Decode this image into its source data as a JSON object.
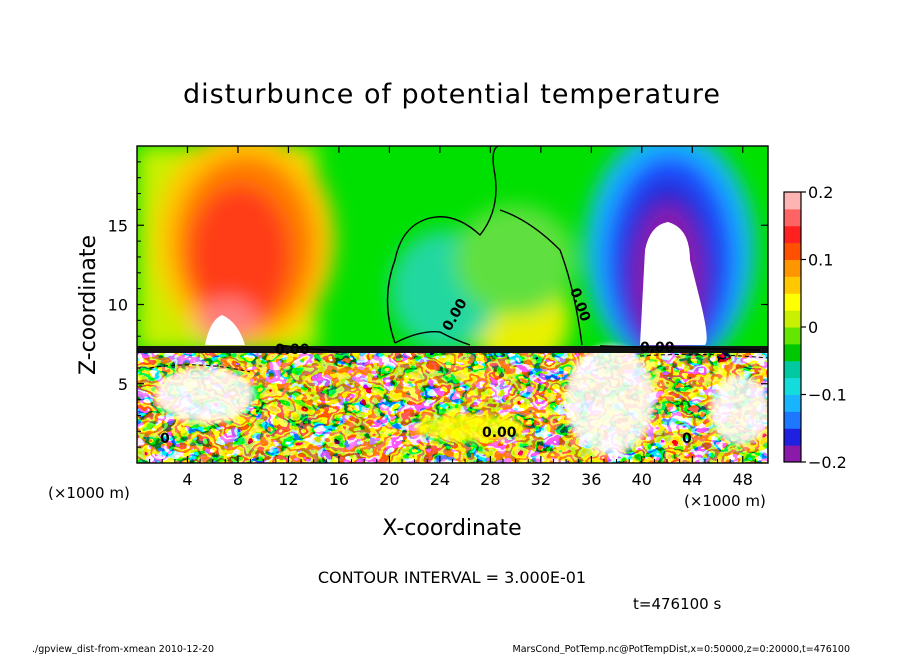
{
  "chart_data": {
    "type": "heatmap",
    "title": "disturbunce of potential temperature",
    "xlabel": "X-coordinate",
    "ylabel": "Z-coordinate",
    "x_unit_label": "(×1000 m)",
    "y_unit_label": "(×1000 m)",
    "xlim": [
      0,
      50
    ],
    "ylim": [
      0,
      20
    ],
    "x_ticks": [
      "4",
      "8",
      "12",
      "16",
      "20",
      "24",
      "28",
      "32",
      "36",
      "40",
      "44",
      "48"
    ],
    "x_tick_values": [
      4,
      8,
      12,
      16,
      20,
      24,
      28,
      32,
      36,
      40,
      44,
      48
    ],
    "y_ticks": [
      "5",
      "10",
      "15"
    ],
    "y_tick_values": [
      5,
      10,
      15
    ],
    "colorbar": {
      "range": [
        -0.2,
        0.2
      ],
      "tick_labels": [
        "0.2",
        "0.1",
        "0",
        "−0.1",
        "−0.2"
      ],
      "tick_values": [
        0.2,
        0.1,
        0,
        -0.1,
        -0.2
      ]
    },
    "contour_labels": [
      "0.00",
      "0.00",
      "0.00",
      "0.00",
      "0.00",
      "0",
      "0"
    ],
    "regions": [
      {
        "name": "warm anomaly upper left",
        "x": [
          2,
          16
        ],
        "z": [
          7.5,
          18
        ],
        "value": 0.15
      },
      {
        "name": "neutral band center",
        "x": [
          16,
          36
        ],
        "z": [
          7.5,
          20
        ],
        "value": 0.0
      },
      {
        "name": "cold anomaly upper right",
        "x": [
          36,
          50
        ],
        "z": [
          7.5,
          19
        ],
        "value": -0.2
      },
      {
        "name": "turbulent layer",
        "x": [
          0,
          50
        ],
        "z": [
          0,
          7.5
        ],
        "value": 0.0
      }
    ],
    "grid": false,
    "legend": "colorbar right"
  },
  "annotations": {
    "contour_interval": "CONTOUR INTERVAL = 3.000E-01",
    "time": "t=476100 s",
    "footer_left": "./gpview_dist-from-xmean  2010-12-20",
    "footer_right": "MarsCond_PotTemp.nc@PotTempDist,x=0:50000,z=0:20000,t=476100"
  },
  "colors": {
    "scale": [
      "#8a1aaa",
      "#2020e0",
      "#1e78ff",
      "#18b4ff",
      "#14dcdc",
      "#00c8a0",
      "#00c800",
      "#64e600",
      "#c8f000",
      "#ffff00",
      "#ffc800",
      "#ff9600",
      "#ff5000",
      "#ff2020",
      "#ff6464",
      "#ffb4b4"
    ]
  }
}
